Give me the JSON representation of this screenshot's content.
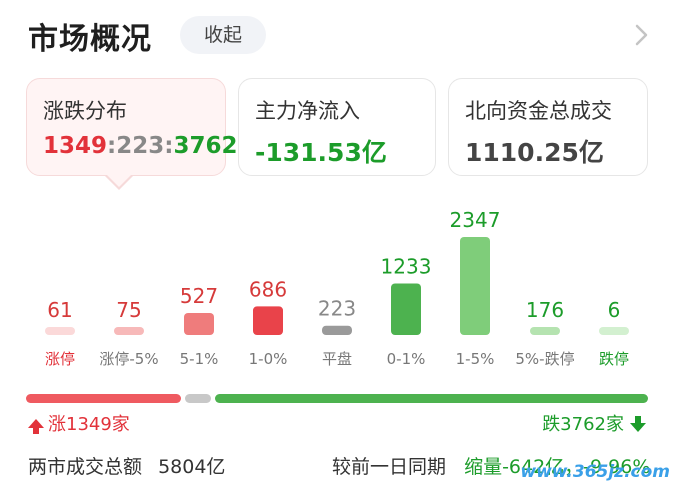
{
  "header": {
    "title": "市场概况",
    "collapse_label": "收起"
  },
  "cards": [
    {
      "label": "涨跌分布",
      "value_up": "1349",
      "sep1": ":",
      "value_flat": "223",
      "sep2": ":",
      "value_down": "3762"
    },
    {
      "label": "主力净流入",
      "value": "-131.53亿"
    },
    {
      "label": "北向资金总成交",
      "value": "1110.25亿"
    }
  ],
  "chart_data": {
    "type": "bar",
    "categories": [
      "涨停",
      "涨停-5%",
      "5-1%",
      "1-0%",
      "平盘",
      "0-1%",
      "1-5%",
      "5%-跌停",
      "跌停"
    ],
    "values": [
      61,
      75,
      527,
      686,
      223,
      1233,
      2347,
      176,
      6
    ],
    "bar_colors": [
      "#fbd9d9",
      "#f7b9b9",
      "#ef7c7c",
      "#e9434a",
      "#9a9a9a",
      "#4db24f",
      "#7fcd7a",
      "#b5e3b0",
      "#d3f0d0"
    ],
    "value_colors": [
      "#d63a3a",
      "#d63a3a",
      "#d63a3a",
      "#d63a3a",
      "#888888",
      "#1c9c2a",
      "#1c9c2a",
      "#1c9c2a",
      "#1c9c2a"
    ],
    "label_colors": [
      "#e2323a",
      "#777777",
      "#777777",
      "#777777",
      "#777777",
      "#777777",
      "#777777",
      "#777777",
      "#1c9c2a"
    ]
  },
  "ratio_bar": {
    "up": 1349,
    "flat": 223,
    "down": 3762,
    "colors": {
      "up": "#ef5a60",
      "flat": "#c8c8c8",
      "down": "#4db24f"
    }
  },
  "summary": {
    "up_text": "涨1349家",
    "down_text": "跌3762家"
  },
  "footer": {
    "total_label": "两市成交总额",
    "total_value": "5804亿",
    "compare_label": "较前一日同期",
    "compare_value": "缩量-642亿，-9.96%"
  },
  "watermark": "www.365jz.com"
}
